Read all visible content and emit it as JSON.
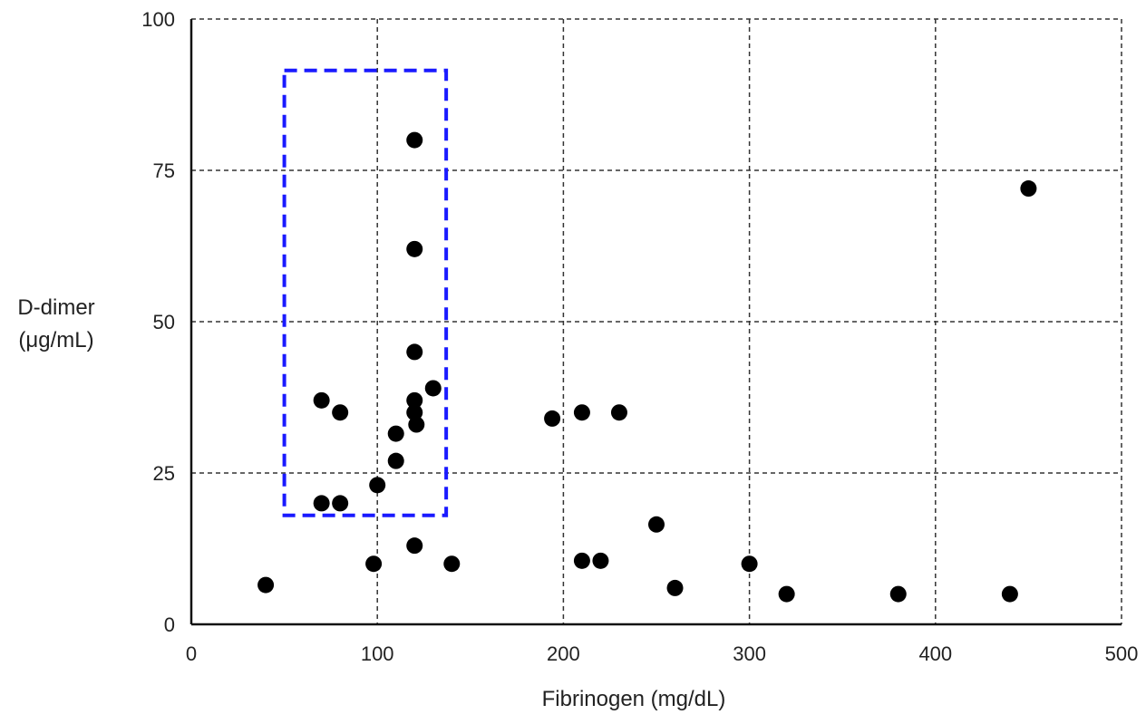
{
  "chart_data": {
    "type": "scatter",
    "title": "",
    "xlabel": "Fibrinogen (mg/dL)",
    "ylabel_lines": [
      "D-dimer",
      "(μg/mL)"
    ],
    "xlim": [
      0,
      500
    ],
    "ylim": [
      0,
      100
    ],
    "x_ticks": [
      0,
      100,
      200,
      300,
      400,
      500
    ],
    "y_ticks": [
      0,
      25,
      50,
      75,
      100
    ],
    "grid": true,
    "legend": "none",
    "marker_color": "#000000",
    "highlight_box": {
      "x_range": [
        50,
        137
      ],
      "y_range": [
        18,
        91.5
      ],
      "color": "#1a1aff",
      "style": "dashed"
    },
    "points": [
      {
        "x": 40,
        "y": 6.5
      },
      {
        "x": 70,
        "y": 37
      },
      {
        "x": 70,
        "y": 20
      },
      {
        "x": 80,
        "y": 35
      },
      {
        "x": 80,
        "y": 20
      },
      {
        "x": 98,
        "y": 10
      },
      {
        "x": 100,
        "y": 23
      },
      {
        "x": 110,
        "y": 31.5
      },
      {
        "x": 110,
        "y": 27
      },
      {
        "x": 120,
        "y": 80
      },
      {
        "x": 120,
        "y": 62
      },
      {
        "x": 120,
        "y": 45
      },
      {
        "x": 120,
        "y": 37
      },
      {
        "x": 120,
        "y": 35
      },
      {
        "x": 121,
        "y": 33
      },
      {
        "x": 120,
        "y": 13
      },
      {
        "x": 130,
        "y": 39
      },
      {
        "x": 140,
        "y": 10
      },
      {
        "x": 194,
        "y": 34
      },
      {
        "x": 210,
        "y": 35
      },
      {
        "x": 210,
        "y": 10.5
      },
      {
        "x": 220,
        "y": 10.5
      },
      {
        "x": 230,
        "y": 35
      },
      {
        "x": 250,
        "y": 16.5
      },
      {
        "x": 260,
        "y": 6
      },
      {
        "x": 300,
        "y": 10
      },
      {
        "x": 320,
        "y": 5
      },
      {
        "x": 380,
        "y": 5
      },
      {
        "x": 440,
        "y": 5
      },
      {
        "x": 450,
        "y": 72
      }
    ]
  }
}
